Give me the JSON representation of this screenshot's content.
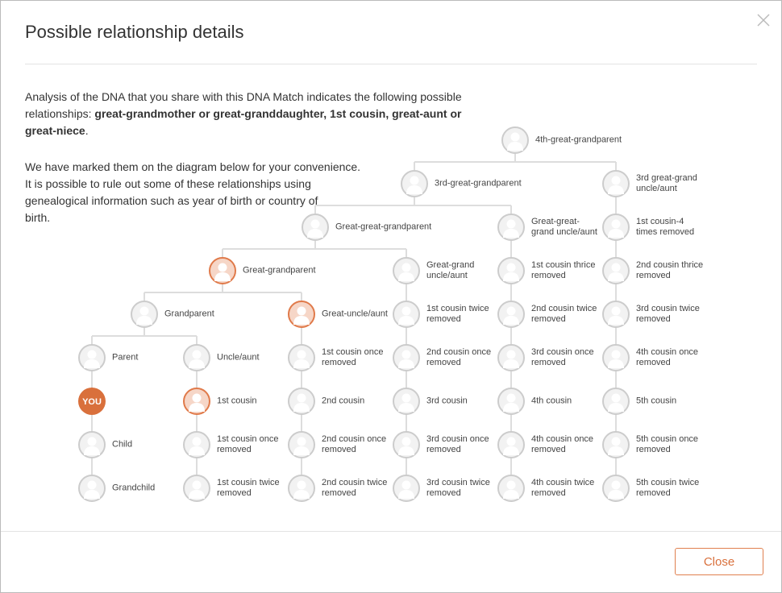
{
  "header": {
    "title": "Possible relationship details"
  },
  "intro": {
    "paragraph1": [
      "Analysis of the DNA that you share with this DNA Match indicates the following possible relationships: ",
      "great-grandmother or great-granddaughter, 1st cousin, great-aunt or great-niece",
      "."
    ],
    "paragraph2": [
      "We have marked them on the diagram below for your convenience.",
      "It is possible to rule out some of these relationships using genealogical information such as year of birth or country of birth."
    ]
  },
  "nodes": [
    {
      "label": [
        "4th-great-grandparent"
      ]
    },
    {
      "label": [
        "3rd-great-grandparent"
      ]
    },
    {
      "label": [
        "3rd great-grand",
        "uncle/aunt"
      ]
    },
    {
      "label": [
        "Great-great-grandparent"
      ]
    },
    {
      "label": [
        "Great-great-",
        "grand uncle/aunt"
      ]
    },
    {
      "label": [
        "1st cousin-4",
        "times removed"
      ]
    },
    {
      "label": [
        "Great-grandparent"
      ],
      "highlighted": true
    },
    {
      "label": [
        "Great-grand",
        "uncle/aunt"
      ]
    },
    {
      "label": [
        "1st cousin thrice",
        "removed"
      ]
    },
    {
      "label": [
        "2nd cousin thrice",
        "removed"
      ]
    },
    {
      "label": [
        "Grandparent"
      ]
    },
    {
      "label": [
        "Great-uncle/aunt"
      ],
      "highlighted": true
    },
    {
      "label": [
        "1st cousin twice",
        "removed"
      ]
    },
    {
      "label": [
        "2nd cousin twice",
        "removed"
      ]
    },
    {
      "label": [
        "3rd cousin twice",
        "removed"
      ]
    },
    {
      "label": [
        "Parent"
      ]
    },
    {
      "label": [
        "Uncle/aunt"
      ]
    },
    {
      "label": [
        "1st cousin once",
        "removed"
      ]
    },
    {
      "label": [
        "2nd cousin once",
        "removed"
      ]
    },
    {
      "label": [
        "3rd cousin once",
        "removed"
      ]
    },
    {
      "label": [
        "4th cousin once",
        "removed"
      ]
    },
    {
      "label": [
        "YOU"
      ],
      "self": true
    },
    {
      "label": [
        "1st cousin"
      ],
      "highlighted": true
    },
    {
      "label": [
        "2nd cousin"
      ]
    },
    {
      "label": [
        "3rd cousin"
      ]
    },
    {
      "label": [
        "4th cousin"
      ]
    },
    {
      "label": [
        "5th cousin"
      ]
    },
    {
      "label": [
        "Child"
      ]
    },
    {
      "label": [
        "1st cousin once",
        "removed"
      ]
    },
    {
      "label": [
        "2nd cousin once",
        "removed"
      ]
    },
    {
      "label": [
        "3rd cousin once",
        "removed"
      ]
    },
    {
      "label": [
        "4th cousin once",
        "removed"
      ]
    },
    {
      "label": [
        "5th cousin once",
        "removed"
      ]
    },
    {
      "label": [
        "Grandchild"
      ]
    },
    {
      "label": [
        "1st cousin twice",
        "removed"
      ]
    },
    {
      "label": [
        "2nd cousin twice",
        "removed"
      ]
    },
    {
      "label": [
        "3rd cousin twice",
        "removed"
      ]
    },
    {
      "label": [
        "4th cousin twice",
        "removed"
      ]
    },
    {
      "label": [
        "5th cousin twice",
        "removed"
      ]
    }
  ],
  "footer": {
    "close_button": "Close"
  }
}
